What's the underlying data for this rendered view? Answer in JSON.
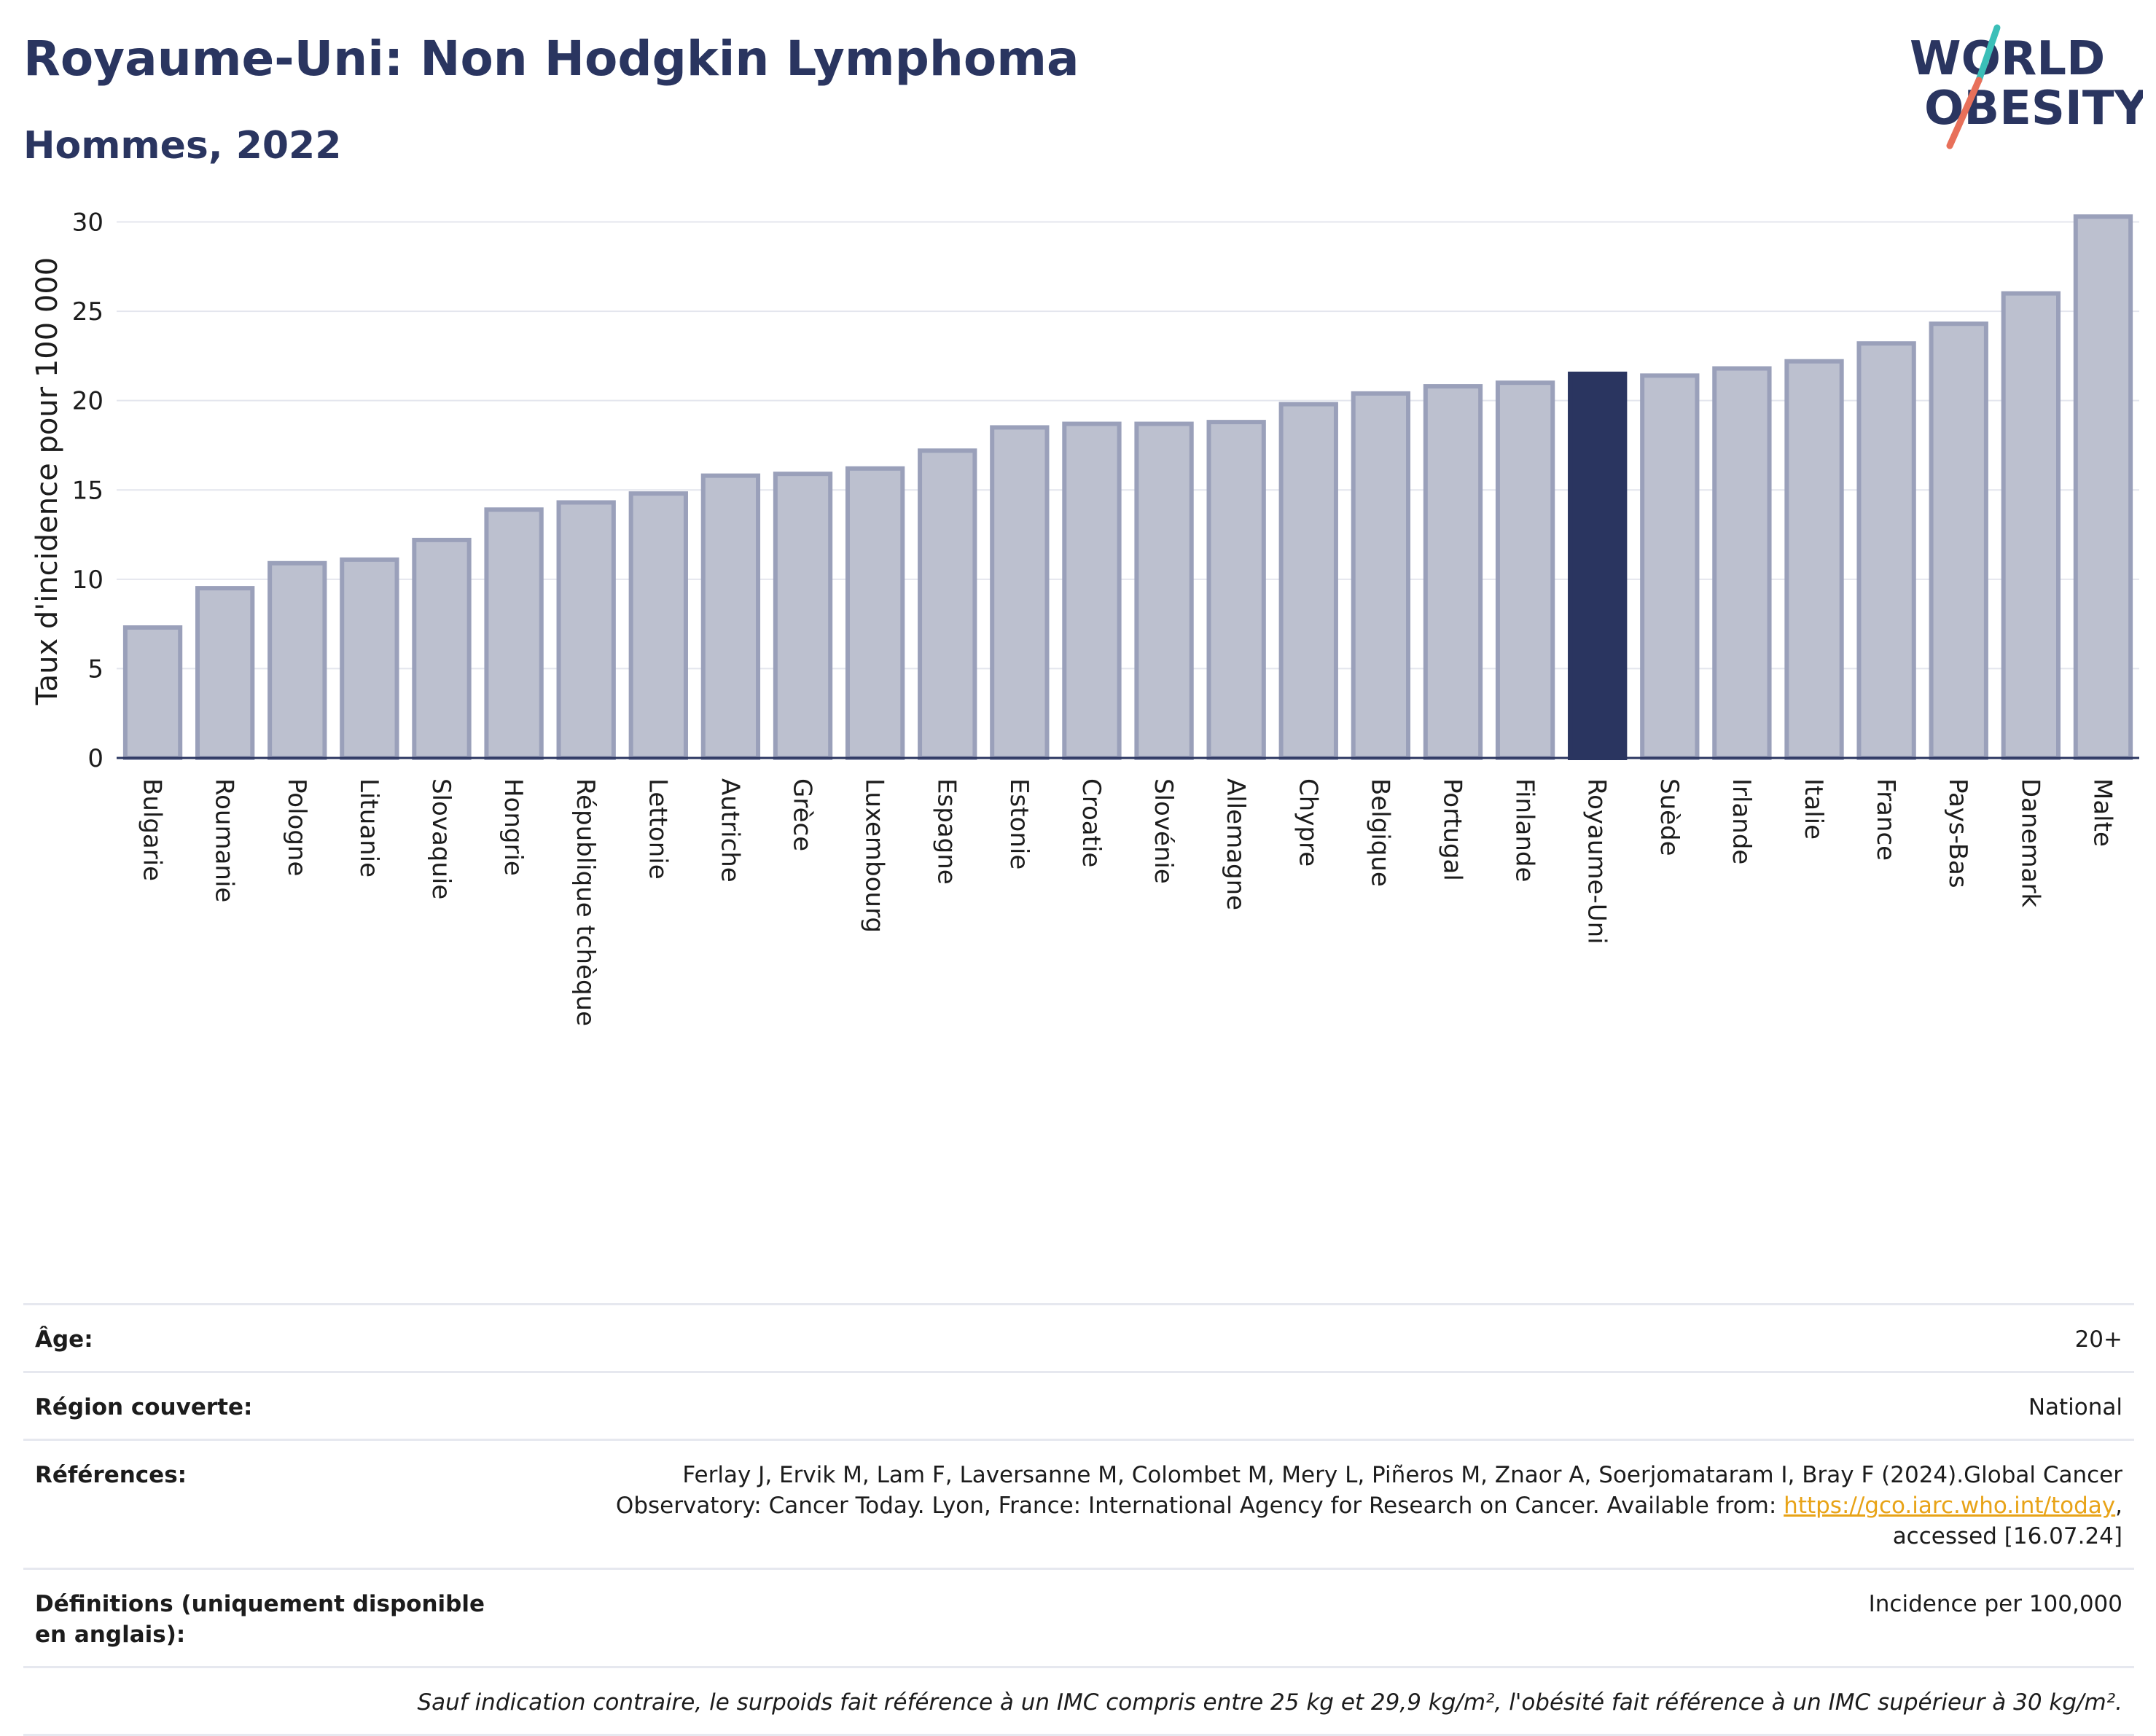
{
  "header": {
    "title": "Royaume-Uni: Non Hodgkin Lymphoma",
    "subtitle": "Hommes, 2022"
  },
  "logo": {
    "line1": "WORLD",
    "line2": "OBESITY",
    "colors": {
      "text": "#2a3560",
      "slash_top": "#3bbfb8",
      "slash_bottom": "#e8705a"
    }
  },
  "chart_data": {
    "type": "bar",
    "title": "",
    "xlabel": "",
    "ylabel": "Taux d'incidence pour 100 000",
    "ylim": [
      0,
      31
    ],
    "yticks": [
      0,
      5,
      10,
      15,
      20,
      25,
      30
    ],
    "grid": true,
    "highlight": "Royaume-Uni",
    "colors": {
      "bar": "#bcc0cf",
      "bar_edge": "#9aa0ba",
      "highlight": "#2a3560"
    },
    "categories": [
      "Bulgarie",
      "Roumanie",
      "Pologne",
      "Lituanie",
      "Slovaquie",
      "Hongrie",
      "République tchèque",
      "Lettonie",
      "Autriche",
      "Grèce",
      "Luxembourg",
      "Espagne",
      "Estonie",
      "Croatie",
      "Slovénie",
      "Allemagne",
      "Chypre",
      "Belgique",
      "Portugal",
      "Finlande",
      "Royaume-Uni",
      "Suède",
      "Irlande",
      "Italie",
      "France",
      "Pays-Bas",
      "Danemark",
      "Malte"
    ],
    "values": [
      7.3,
      9.5,
      10.9,
      11.1,
      12.2,
      13.9,
      14.3,
      14.8,
      15.8,
      15.9,
      16.2,
      17.2,
      18.5,
      18.7,
      18.7,
      18.8,
      19.8,
      20.4,
      20.8,
      21.0,
      21.5,
      21.4,
      21.8,
      22.2,
      23.2,
      24.3,
      26.0,
      30.3
    ]
  },
  "metadata": {
    "age_label": "Âge:",
    "age_value": "20+",
    "region_label": "Région couverte:",
    "region_value": "National",
    "references_label": "Références:",
    "references_text": "Ferlay J, Ervik M, Lam F, Laversanne M, Colombet M, Mery L, Piñeros M, Znaor A, Soerjomataram I, Bray F (2024).Global Cancer Observatory: Cancer Today. Lyon, France: International Agency for Research on Cancer. Available from: ",
    "references_link": "https://gco.iarc.who.int/today",
    "references_suffix": ", accessed [16.07.24]",
    "definitions_label": "Définitions (uniquement disponible en anglais):",
    "definitions_value": "Incidence per 100,000",
    "note": "Sauf indication contraire, le surpoids fait référence à un IMC compris entre 25 kg et 29,9 kg/m², l'obésité fait référence à un IMC supérieur à 30 kg/m²."
  }
}
